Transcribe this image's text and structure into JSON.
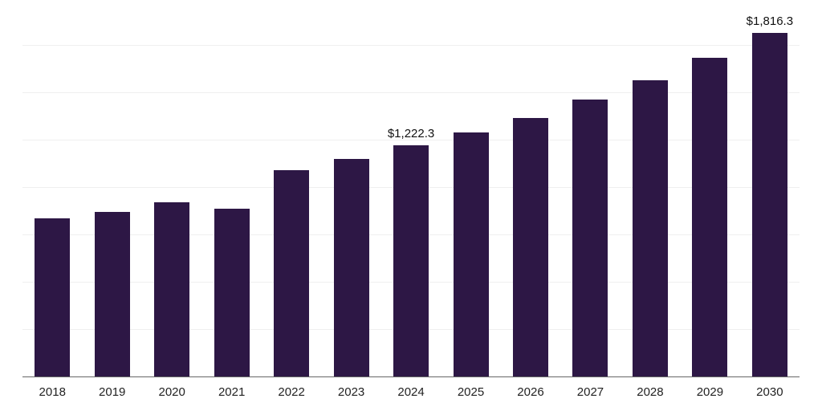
{
  "chart_data": {
    "type": "bar",
    "title": "",
    "xlabel": "",
    "ylabel": "",
    "categories": [
      "2018",
      "2019",
      "2020",
      "2021",
      "2022",
      "2023",
      "2024",
      "2025",
      "2026",
      "2027",
      "2028",
      "2029",
      "2030"
    ],
    "values": [
      835.0,
      872.0,
      924.0,
      890.0,
      1094.0,
      1150.0,
      1222.3,
      1290.0,
      1369.0,
      1466.0,
      1568.0,
      1688.0,
      1816.3
    ],
    "ylim": [
      0,
      1950
    ],
    "grid_step": 250,
    "grid": true,
    "legend_position": "none",
    "bar_color": "#2d1745",
    "annotations": [
      {
        "category": "2024",
        "index": 6,
        "text": "$1,222.3"
      },
      {
        "category": "2030",
        "index": 12,
        "text": "$1,816.3"
      }
    ]
  }
}
